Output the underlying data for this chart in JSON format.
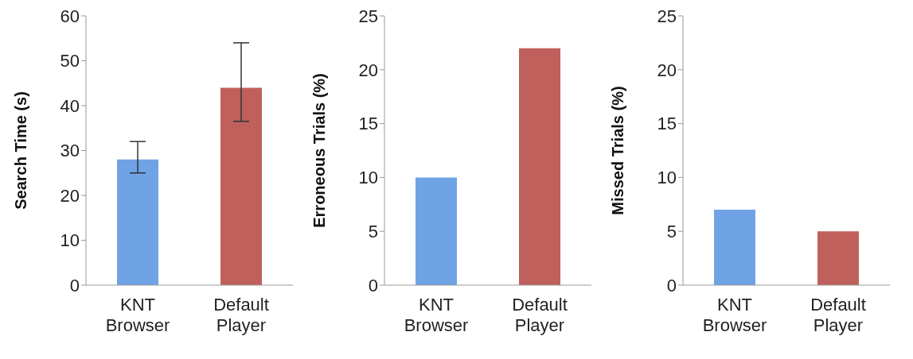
{
  "chart_data": [
    {
      "type": "bar",
      "ylabel": "Search Time (s)",
      "categories": [
        "KNT Browser",
        "Default Player"
      ],
      "values": [
        28,
        44
      ],
      "colors": [
        "#6fa3e6",
        "#c0605c"
      ],
      "errors": [
        [
          25,
          32
        ],
        [
          36.5,
          54
        ]
      ],
      "ylim": [
        0,
        60
      ],
      "yticks": [
        0,
        10,
        20,
        30,
        40,
        50,
        60
      ]
    },
    {
      "type": "bar",
      "ylabel": "Erroneous Trials (%)",
      "categories": [
        "KNT Browser",
        "Default Player"
      ],
      "values": [
        10,
        22
      ],
      "colors": [
        "#6fa3e6",
        "#c0605c"
      ],
      "ylim": [
        0,
        25
      ],
      "yticks": [
        0,
        5,
        10,
        15,
        20,
        25
      ]
    },
    {
      "type": "bar",
      "ylabel": "Missed Trials (%)",
      "categories": [
        "KNT Browser",
        "Default Player"
      ],
      "values": [
        7,
        5
      ],
      "colors": [
        "#6fa3e6",
        "#c0605c"
      ],
      "ylim": [
        0,
        25
      ],
      "yticks": [
        0,
        5,
        10,
        15,
        20,
        25
      ]
    }
  ]
}
